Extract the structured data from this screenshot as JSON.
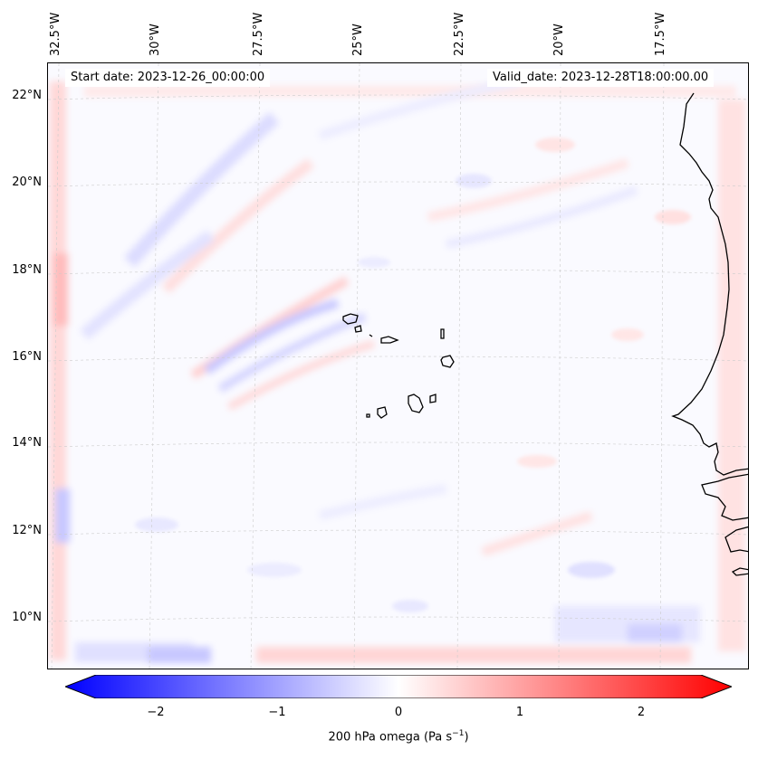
{
  "map": {
    "start_date": "Start date: 2023-12-26_00:00:00",
    "valid_date": "Valid_date: 2023-12-28T18:00:00.00",
    "longitude_labels": [
      "32.5°W",
      "30°W",
      "27.5°W",
      "25°W",
      "22.5°W",
      "20°W",
      "17.5°W"
    ],
    "latitude_labels": [
      "22°N",
      "20°N",
      "18°N",
      "16°N",
      "14°N",
      "12°N",
      "10°N"
    ],
    "field": "200 hPa omega",
    "colormap": "bwr",
    "colors": {
      "negative": "#0000ff",
      "zero": "#ffffff",
      "positive": "#ff0000",
      "coastline": "#000000"
    }
  },
  "colorbar": {
    "min": -2.5,
    "max": 2.5,
    "ticks": [
      "−2",
      "−1",
      "0",
      "1",
      "2"
    ],
    "label_text": "200 hPa omega (Pa s",
    "label_sup": "−1",
    "label_close": ")"
  }
}
